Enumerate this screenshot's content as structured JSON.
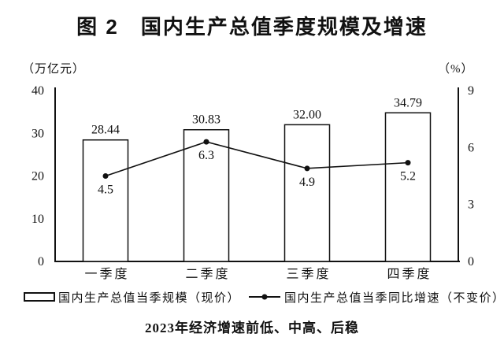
{
  "title": "图 2　国内生产总值季度规模及增速",
  "left_axis_unit": "（万亿元）",
  "right_axis_unit": "（%）",
  "legend": {
    "bar_label": "国内生产总值当季规模（现价）",
    "line_label": "国内生产总值当季同比增速（不变价）"
  },
  "caption": "2023年经济增速前低、中高、后稳",
  "colors": {
    "ink": "#111111",
    "background": "#ffffff",
    "bar_fill": "#ffffff"
  },
  "chart_data": {
    "type": "bar",
    "title": "图 2　国内生产总值季度规模及增速",
    "subtitle": "2023年经济增速前低、中高、后稳",
    "categories": [
      "一季度",
      "二季度",
      "三季度",
      "四季度"
    ],
    "series": [
      {
        "name": "国内生产总值当季规模（现价）",
        "type": "bar",
        "axis": "left",
        "values": [
          28.44,
          30.83,
          32.0,
          34.79
        ],
        "labels": [
          "28.44",
          "30.83",
          "32.00",
          "34.79"
        ]
      },
      {
        "name": "国内生产总值当季同比增速（不变价）",
        "type": "line",
        "axis": "right",
        "values": [
          4.5,
          6.3,
          4.9,
          5.2
        ],
        "labels": [
          "4.5",
          "6.3",
          "4.9",
          "5.2"
        ]
      }
    ],
    "left_axis": {
      "label": "（万亿元）",
      "min": 0,
      "max": 40,
      "ticks": [
        0,
        10,
        20,
        30,
        40
      ]
    },
    "right_axis": {
      "label": "（%）",
      "min": 0,
      "max": 9,
      "ticks": [
        0,
        3,
        6,
        9
      ]
    },
    "grid": false,
    "legend_position": "bottom"
  }
}
